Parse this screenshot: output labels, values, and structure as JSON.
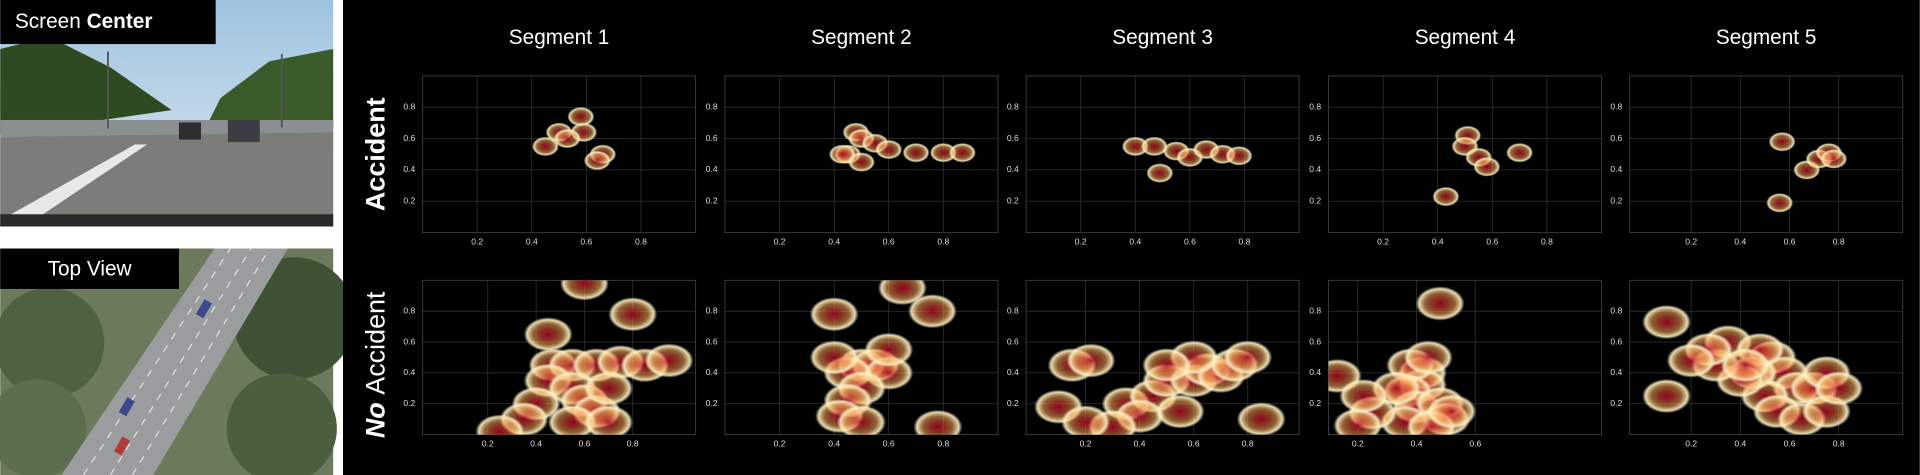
{
  "header": {
    "screen_center": {
      "text": "Screen",
      "bold": "Center"
    },
    "top_view": "Top View"
  },
  "columns": [
    "Segment 1",
    "Segment 2",
    "Segment 3",
    "Segment 4",
    "Segment 5"
  ],
  "row_labels": [
    {
      "text": "Accident"
    },
    {
      "emph": "No",
      "text": "Accident"
    }
  ],
  "chart_data": [
    {
      "type": "density",
      "x": [
        0.45,
        0.5,
        0.58,
        0.59,
        0.66,
        0.64,
        0.53
      ],
      "y": [
        0.55,
        0.64,
        0.74,
        0.64,
        0.5,
        0.46,
        0.6
      ],
      "xlim": [
        0,
        1
      ],
      "ylim": [
        0,
        1
      ],
      "xticks": [
        0.2,
        0.4,
        0.6,
        0.8
      ],
      "yticks": [
        0.2,
        0.4,
        0.6,
        0.8
      ],
      "grid": true
    },
    {
      "type": "density",
      "x": [
        0.48,
        0.5,
        0.55,
        0.45,
        0.5,
        0.6,
        0.7,
        0.8,
        0.87,
        0.43
      ],
      "y": [
        0.64,
        0.6,
        0.57,
        0.5,
        0.45,
        0.53,
        0.51,
        0.51,
        0.51,
        0.5
      ],
      "xlim": [
        0,
        1
      ],
      "ylim": [
        0,
        1
      ],
      "xticks": [
        0.2,
        0.4,
        0.6,
        0.8
      ],
      "yticks": [
        0.2,
        0.4,
        0.6,
        0.8
      ],
      "grid": true
    },
    {
      "type": "density",
      "x": [
        0.4,
        0.47,
        0.55,
        0.6,
        0.66,
        0.72,
        0.78,
        0.49
      ],
      "y": [
        0.55,
        0.55,
        0.52,
        0.48,
        0.53,
        0.5,
        0.49,
        0.38
      ],
      "xlim": [
        0,
        1
      ],
      "ylim": [
        0,
        1
      ],
      "xticks": [
        0.2,
        0.4,
        0.6,
        0.8
      ],
      "yticks": [
        0.2,
        0.4,
        0.6,
        0.8
      ],
      "grid": true
    },
    {
      "type": "density",
      "x": [
        0.51,
        0.5,
        0.55,
        0.58,
        0.7,
        0.43
      ],
      "y": [
        0.62,
        0.55,
        0.48,
        0.42,
        0.51,
        0.23
      ],
      "xlim": [
        0,
        1
      ],
      "ylim": [
        0,
        1
      ],
      "xticks": [
        0.2,
        0.4,
        0.6,
        0.8
      ],
      "yticks": [
        0.2,
        0.4,
        0.6,
        0.8
      ],
      "grid": true
    },
    {
      "type": "density",
      "x": [
        0.57,
        0.56,
        0.67,
        0.72,
        0.76,
        0.78
      ],
      "y": [
        0.58,
        0.19,
        0.4,
        0.47,
        0.51,
        0.47
      ],
      "xlim": [
        -0.05,
        1.06
      ],
      "ylim": [
        0,
        1
      ],
      "xticks": [
        0.2,
        0.4,
        0.6,
        0.8
      ],
      "yticks": [
        0.2,
        0.4,
        0.6,
        0.8
      ],
      "grid": true
    },
    {
      "type": "density",
      "x": [
        0.47,
        0.55,
        0.65,
        0.75,
        0.85,
        0.95,
        0.45,
        0.55,
        0.6,
        0.65,
        0.55,
        0.7,
        0.4,
        0.45,
        0.6,
        0.8,
        0.35,
        0.25,
        0.7
      ],
      "y": [
        0.45,
        0.45,
        0.45,
        0.47,
        0.45,
        0.48,
        0.35,
        0.3,
        0.22,
        0.15,
        0.08,
        0.08,
        0.2,
        0.65,
        0.98,
        0.78,
        0.1,
        0.02,
        0.3
      ],
      "xlim": [
        -0.07,
        1.06
      ],
      "ylim": [
        0,
        1
      ],
      "xticks": [
        0.2,
        0.4,
        0.6,
        0.8
      ],
      "yticks": [
        0.2,
        0.4,
        0.6,
        0.8
      ],
      "grid": true
    },
    {
      "type": "density",
      "x": [
        0.5,
        0.55,
        0.45,
        0.6,
        0.5,
        0.45,
        0.42,
        0.5,
        0.6,
        0.4,
        0.65,
        0.76,
        0.78,
        0.4
      ],
      "y": [
        0.45,
        0.45,
        0.4,
        0.4,
        0.3,
        0.22,
        0.12,
        0.08,
        0.55,
        0.78,
        0.95,
        0.8,
        0.05,
        0.5
      ],
      "xlim": [
        0,
        1
      ],
      "ylim": [
        0,
        1
      ],
      "xticks": [
        0.2,
        0.4,
        0.6,
        0.8
      ],
      "yticks": [
        0.2,
        0.4,
        0.6,
        0.8
      ],
      "grid": true
    },
    {
      "type": "density",
      "x": [
        0.15,
        0.22,
        0.35,
        0.45,
        0.5,
        0.6,
        0.65,
        0.7,
        0.75,
        0.8,
        0.4,
        0.55,
        0.3,
        0.1,
        0.2,
        0.85,
        0.6,
        0.5
      ],
      "y": [
        0.45,
        0.48,
        0.2,
        0.25,
        0.35,
        0.35,
        0.42,
        0.38,
        0.45,
        0.5,
        0.12,
        0.15,
        0.05,
        0.18,
        0.08,
        0.1,
        0.5,
        0.45
      ],
      "xlim": [
        -0.02,
        0.99
      ],
      "ylim": [
        0,
        1
      ],
      "xticks": [
        0.2,
        0.4,
        0.6,
        0.8
      ],
      "yticks": [
        0.2,
        0.4,
        0.6,
        0.8
      ],
      "grid": true
    },
    {
      "type": "density",
      "x": [
        0.42,
        0.42,
        0.38,
        0.37,
        0.4,
        0.48,
        0.5,
        0.36,
        0.45,
        0.52,
        0.44,
        0.48,
        0.25,
        0.2,
        0.13,
        0.33,
        0.22
      ],
      "y": [
        0.4,
        0.32,
        0.45,
        0.28,
        0.18,
        0.2,
        0.1,
        0.08,
        0.05,
        0.15,
        0.5,
        0.85,
        0.14,
        0.06,
        0.38,
        0.3,
        0.25
      ],
      "xlim": [
        0.1,
        1.03
      ],
      "ylim": [
        0,
        1
      ],
      "xticks": [
        0.2,
        0.4,
        0.6
      ],
      "yticks": [
        0.2,
        0.4,
        0.6,
        0.8
      ],
      "grid": true
    },
    {
      "type": "density",
      "x": [
        0.53,
        0.58,
        0.63,
        0.7,
        0.75,
        0.5,
        0.55,
        0.65,
        0.45,
        0.4,
        0.3,
        0.35,
        0.27,
        0.2,
        0.1,
        0.75,
        0.8,
        0.1,
        0.48,
        0.42
      ],
      "y": [
        0.5,
        0.4,
        0.3,
        0.3,
        0.4,
        0.25,
        0.15,
        0.1,
        0.4,
        0.35,
        0.45,
        0.6,
        0.55,
        0.48,
        0.73,
        0.15,
        0.3,
        0.25,
        0.55,
        0.45
      ],
      "xlim": [
        -0.05,
        1.06
      ],
      "ylim": [
        0,
        1
      ],
      "xticks": [
        0.2,
        0.4,
        0.6,
        0.8
      ],
      "yticks": [
        0.2,
        0.4,
        0.6,
        0.8
      ],
      "grid": true
    }
  ]
}
